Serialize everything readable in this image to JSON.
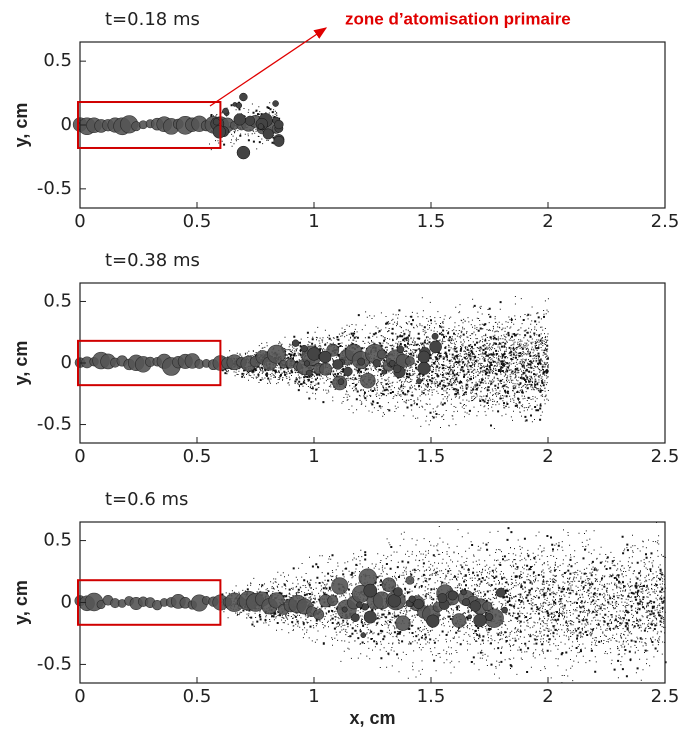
{
  "annotation": "zone d’atomisation primaire",
  "chart_data": [
    {
      "type": "spray",
      "title": "t=0.18 ms",
      "ylabel": "y, cm",
      "xlim": [
        0,
        2.5
      ],
      "ylim": [
        -0.65,
        0.65
      ],
      "xticks": [
        0,
        0.5,
        1,
        1.5,
        2,
        2.5
      ],
      "yticks": [
        0.5,
        0,
        -0.5
      ],
      "jet_tip": 0.85,
      "highlight": {
        "x": [
          0,
          0.6
        ],
        "y": [
          -0.18,
          0.18
        ]
      }
    },
    {
      "type": "spray",
      "title": "t=0.38 ms",
      "ylabel": "y, cm",
      "xlim": [
        0,
        2.5
      ],
      "ylim": [
        -0.65,
        0.65
      ],
      "xticks": [
        0,
        0.5,
        1,
        1.5,
        2,
        2.5
      ],
      "yticks": [
        0.5,
        0,
        -0.5
      ],
      "jet_tip": 2.0,
      "highlight": {
        "x": [
          0,
          0.6
        ],
        "y": [
          -0.18,
          0.18
        ]
      }
    },
    {
      "type": "spray",
      "title": "t=0.6 ms",
      "ylabel": "y, cm",
      "xlabel": "x, cm",
      "xlim": [
        0,
        2.5
      ],
      "ylim": [
        -0.65,
        0.65
      ],
      "xticks": [
        0,
        0.5,
        1,
        1.5,
        2,
        2.5
      ],
      "yticks": [
        0.5,
        0,
        -0.5
      ],
      "jet_tip": 2.5,
      "highlight": {
        "x": [
          0,
          0.6
        ],
        "y": [
          -0.18,
          0.18
        ]
      }
    }
  ]
}
